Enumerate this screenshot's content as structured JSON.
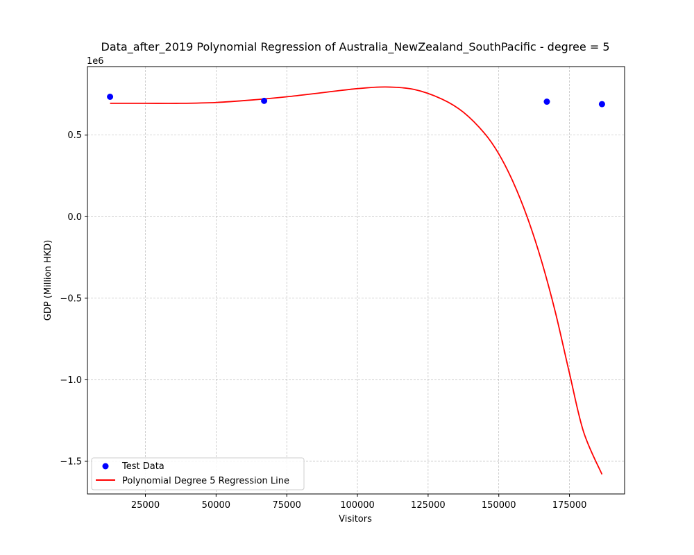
{
  "chart_data": {
    "type": "scatter",
    "title": "Data_after_2019 Polynomial Regression of Australia_NewZealand_SouthPacific - degree = 5",
    "xlabel": "Visitors",
    "ylabel": "GDP (Million HKD)",
    "y_offset_label": "1e6",
    "xlim": [
      4500,
      194500
    ],
    "ylim": [
      -1.7,
      0.92
    ],
    "x_ticks": [
      25000,
      50000,
      75000,
      100000,
      125000,
      150000,
      175000
    ],
    "x_tick_labels": [
      "25000",
      "50000",
      "75000",
      "100000",
      "125000",
      "150000",
      "175000"
    ],
    "y_ticks": [
      0.5,
      0.0,
      -0.5,
      -1.0,
      -1.5
    ],
    "y_tick_labels": [
      "0.5",
      "0.0",
      "−0.5",
      "−1.0",
      "−1.5"
    ],
    "grid": true,
    "legend_position": "lower-left",
    "series": [
      {
        "name": "Test Data",
        "kind": "scatter",
        "color": "#0000ff",
        "x": [
          12500,
          67000,
          167000,
          186500
        ],
        "y": [
          0.735,
          0.71,
          0.705,
          0.69
        ]
      },
      {
        "name": "Polynomial Degree 5 Regression Line",
        "kind": "line",
        "color": "#ff0000",
        "x": [
          12500,
          25000,
          37500,
          50000,
          62500,
          75000,
          87500,
          100000,
          110000,
          120000,
          130000,
          137500,
          145000,
          150000,
          155000,
          160000,
          165000,
          170000,
          175000,
          180000,
          186500
        ],
        "y": [
          0.695,
          0.695,
          0.695,
          0.7,
          0.715,
          0.735,
          0.76,
          0.785,
          0.795,
          0.78,
          0.72,
          0.64,
          0.51,
          0.385,
          0.215,
          0.0,
          -0.265,
          -0.585,
          -0.96,
          -1.32,
          -1.58
        ]
      }
    ]
  }
}
